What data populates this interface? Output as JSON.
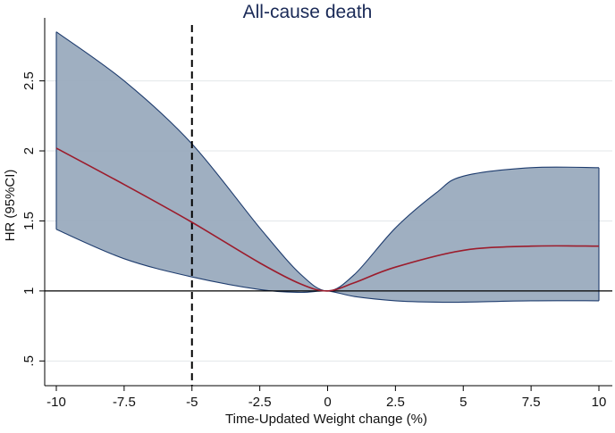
{
  "chart_data": {
    "type": "line",
    "title": "All-cause death",
    "xlabel": "Time-Updated Weight change (%)",
    "ylabel": "HR (95%CI)",
    "xlim": [
      -10,
      10
    ],
    "ylim": [
      0.4,
      2.95
    ],
    "x_ticks": [
      {
        "value": -10,
        "label": "-10"
      },
      {
        "value": -7.5,
        "label": "-7.5"
      },
      {
        "value": -5,
        "label": "-5"
      },
      {
        "value": -2.5,
        "label": "-2.5"
      },
      {
        "value": 0,
        "label": "0"
      },
      {
        "value": 2.5,
        "label": "2.5"
      },
      {
        "value": 5,
        "label": "5"
      },
      {
        "value": 7.5,
        "label": "7.5"
      },
      {
        "value": 10,
        "label": "10"
      }
    ],
    "y_ticks": [
      {
        "value": 0.5,
        "label": ".5"
      },
      {
        "value": 1,
        "label": "1"
      },
      {
        "value": 1.5,
        "label": "1.5"
      },
      {
        "value": 2,
        "label": "2"
      },
      {
        "value": 2.5,
        "label": "2.5"
      }
    ],
    "grid": "horizontal",
    "reference_lines": {
      "hline_y": 1,
      "vline_x_dashed": -5
    },
    "colors": {
      "band_fill": "#9aabbe",
      "band_edge": "#1e3c6e",
      "line": "#9c1c2c",
      "title": "#1a2a57",
      "grid": "#e3e7ea"
    },
    "series": [
      {
        "type": "line",
        "x": [
          -10,
          -7.5,
          -5,
          -2.5,
          -1,
          0,
          1,
          2.5,
          5,
          7.5,
          10
        ],
        "values": [
          2.02,
          1.76,
          1.49,
          1.2,
          1.05,
          1.0,
          1.06,
          1.17,
          1.29,
          1.32,
          1.32
        ]
      }
    ],
    "ci_upper": {
      "x": [
        -10,
        -7.5,
        -5,
        -2.5,
        -1,
        0,
        1,
        2.5,
        4,
        5,
        7.5,
        10
      ],
      "values": [
        2.85,
        2.5,
        2.05,
        1.45,
        1.12,
        1.0,
        1.12,
        1.45,
        1.7,
        1.82,
        1.88,
        1.88
      ]
    },
    "ci_lower": {
      "x": [
        -10,
        -7.5,
        -5,
        -2.5,
        -1,
        0,
        1,
        2.5,
        4,
        5,
        7.5,
        10
      ],
      "values": [
        1.44,
        1.23,
        1.1,
        1.01,
        0.99,
        1.0,
        0.96,
        0.93,
        0.92,
        0.92,
        0.93,
        0.93
      ]
    }
  }
}
